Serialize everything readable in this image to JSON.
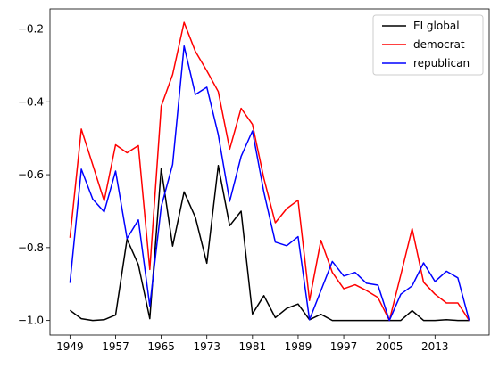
{
  "chart_data": {
    "type": "line",
    "x": [
      1949,
      1951,
      1953,
      1955,
      1957,
      1959,
      1961,
      1963,
      1965,
      1967,
      1969,
      1971,
      1973,
      1975,
      1977,
      1979,
      1981,
      1983,
      1985,
      1987,
      1989,
      1991,
      1993,
      1995,
      1997,
      1999,
      2001,
      2003,
      2005,
      2007,
      2009,
      2011,
      2013,
      2015,
      2017,
      2019
    ],
    "series": [
      {
        "name": "EI global",
        "color": "#000000",
        "values": [
          -0.972,
          -0.995,
          -1.0,
          -0.998,
          -0.985,
          -0.777,
          -0.847,
          -0.995,
          -0.583,
          -0.796,
          -0.647,
          -0.717,
          -0.843,
          -0.575,
          -0.74,
          -0.7,
          -0.982,
          -0.932,
          -0.992,
          -0.967,
          -0.955,
          -0.998,
          -0.983,
          -1.0,
          -1.0,
          -1.0,
          -1.0,
          -1.0,
          -1.0,
          -1.0,
          -0.973,
          -1.0,
          -1.0,
          -0.998,
          -1.0,
          -1.0
        ]
      },
      {
        "name": "democrat",
        "color": "#ff0000",
        "values": [
          -0.773,
          -0.475,
          -0.573,
          -0.672,
          -0.518,
          -0.54,
          -0.52,
          -0.86,
          -0.412,
          -0.325,
          -0.182,
          -0.262,
          -0.315,
          -0.372,
          -0.53,
          -0.418,
          -0.462,
          -0.61,
          -0.732,
          -0.693,
          -0.67,
          -0.945,
          -0.78,
          -0.868,
          -0.913,
          -0.902,
          -0.918,
          -0.937,
          -1.0,
          -0.875,
          -0.748,
          -0.895,
          -0.928,
          -0.952,
          -0.952,
          -1.0
        ]
      },
      {
        "name": "republican",
        "color": "#0000ff",
        "values": [
          -0.897,
          -0.585,
          -0.667,
          -0.702,
          -0.59,
          -0.775,
          -0.724,
          -0.96,
          -0.688,
          -0.572,
          -0.247,
          -0.38,
          -0.36,
          -0.49,
          -0.673,
          -0.55,
          -0.48,
          -0.648,
          -0.785,
          -0.795,
          -0.77,
          -0.998,
          -0.918,
          -0.838,
          -0.878,
          -0.868,
          -0.898,
          -0.903,
          -1.0,
          -0.928,
          -0.905,
          -0.842,
          -0.893,
          -0.865,
          -0.883,
          -1.0
        ]
      }
    ],
    "xticks": [
      "1949",
      "1957",
      "1965",
      "1973",
      "1981",
      "1989",
      "1997",
      "2005",
      "2013"
    ],
    "yticks": [
      "−1.0",
      "−0.8",
      "−0.6",
      "−0.4",
      "−0.2"
    ],
    "xlim": [
      1945.5,
      2022.5
    ],
    "ylim": [
      -1.04,
      -0.145
    ],
    "title": "",
    "xlabel": "",
    "ylabel": "",
    "grid": false,
    "legend_position": "top-right"
  }
}
